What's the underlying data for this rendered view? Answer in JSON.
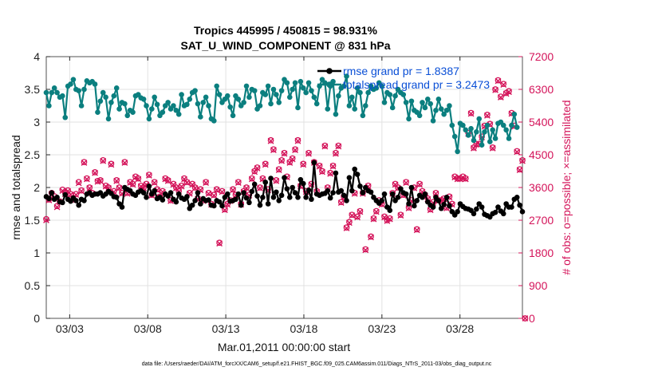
{
  "chart_data": {
    "type": "line",
    "title": "Tropics 445995 / 450815 = 98.931%",
    "subtitle": "SAT_U_WIND_COMPONENT @ 831 hPa",
    "xlabel": "Mar.01,2011 00:00:00 start",
    "ylabel": "rmse and totalspread",
    "ylabel_right": "# of obs: o=possible; ×=assimilated",
    "footnote": "data file: /Users/raeder/DAI/ATM_forcXX/CAM6_setup/f.e21.FHIST_BGC.f09_025.CAM6assim.011/Diags_NTrS_2011-03/obs_diag_output.nc",
    "xlim": [
      1.5,
      32.0
    ],
    "ylim": [
      0,
      4
    ],
    "ylim_right": [
      0,
      7200
    ],
    "x_tick_positions": [
      3,
      8,
      13,
      18,
      23,
      28
    ],
    "x_tick_labels": [
      "03/03",
      "03/08",
      "03/13",
      "03/18",
      "03/23",
      "03/28"
    ],
    "y_ticks": [
      "0",
      "0.5",
      "1",
      "1.5",
      "2",
      "2.5",
      "3",
      "3.5",
      "4"
    ],
    "y_ticks_right": [
      "0",
      "900",
      "1800",
      "2700",
      "3600",
      "4500",
      "5400",
      "6300",
      "7200"
    ],
    "grid": true,
    "legend_position": "top-right",
    "series": [
      {
        "name": "rmse grand pr = 1.8387",
        "color": "#000000",
        "axis": "left",
        "values": [
          1.86,
          1.83,
          1.92,
          1.82,
          1.85,
          1.78,
          1.77,
          1.89,
          1.82,
          1.79,
          1.84,
          1.8,
          1.73,
          1.82,
          1.8,
          1.9,
          1.92,
          1.88,
          1.9,
          1.9,
          1.92,
          1.87,
          1.9,
          1.94,
          1.91,
          1.86,
          1.85,
          1.75,
          1.7,
          2.0,
          1.97,
          1.95,
          1.9,
          1.88,
          1.93,
          1.95,
          1.92,
          1.85,
          2.02,
          1.9,
          1.95,
          1.83,
          1.85,
          1.81,
          1.9,
          1.87,
          1.92,
          1.82,
          1.78,
          1.9,
          1.84,
          1.82,
          1.86,
          1.68,
          1.73,
          1.8,
          1.92,
          1.75,
          1.83,
          1.8,
          1.81,
          1.73,
          1.72,
          1.8,
          1.78,
          1.72,
          1.85,
          1.9,
          1.79,
          1.8,
          1.82,
          1.9,
          1.73,
          1.92,
          1.84,
          1.77,
          1.94,
          2.05,
          1.87,
          1.73,
          1.85,
          2.08,
          1.75,
          2.14,
          1.85,
          1.93,
          1.8,
          1.88,
          2.15,
          1.98,
          1.85,
          2.0,
          1.92,
          1.85,
          2.12,
          2.06,
          1.85,
          1.96,
          1.82,
          2.38,
          1.9,
          1.88,
          1.9,
          1.91,
          1.95,
          1.84,
          1.92,
          2.22,
          1.93,
          1.95,
          1.88,
          1.8,
          2.15,
          1.95,
          2.28,
          2.2,
          2.02,
          1.92,
          2.0,
          1.95,
          1.93,
          1.85,
          1.8,
          1.76,
          1.8,
          1.9,
          1.7,
          1.65,
          1.9,
          1.8,
          1.85,
          1.98,
          1.92,
          1.9,
          1.75,
          2.0,
          1.72,
          1.8,
          1.88,
          1.85,
          1.9,
          1.78,
          1.73,
          1.7,
          1.85,
          1.8,
          1.68,
          1.74,
          1.85,
          1.72,
          1.63,
          1.58,
          1.63,
          1.75,
          1.71,
          1.68,
          1.67,
          1.65,
          1.6,
          1.67,
          1.75,
          1.7,
          1.59,
          1.57,
          1.55,
          1.6,
          1.62,
          1.7,
          1.64,
          1.6,
          1.75,
          1.7,
          1.7,
          1.82,
          1.85,
          1.73,
          1.63
        ]
      },
      {
        "name": "totalspread grand pr = 3.2473",
        "color": "#0b7f7f",
        "axis": "left",
        "values": [
          3.45,
          3.25,
          3.45,
          3.52,
          3.45,
          3.38,
          3.4,
          3.07,
          3.55,
          3.58,
          3.65,
          3.5,
          3.48,
          3.25,
          3.5,
          3.63,
          3.6,
          3.62,
          3.58,
          3.15,
          3.32,
          3.45,
          3.38,
          3.05,
          3.3,
          3.4,
          3.52,
          3.2,
          3.3,
          3.28,
          3.1,
          3.18,
          3.15,
          3.4,
          3.42,
          3.37,
          3.35,
          3.25,
          3.05,
          3.2,
          3.38,
          3.27,
          3.1,
          3.15,
          3.25,
          3.3,
          3.2,
          3.25,
          3.18,
          3.12,
          3.42,
          3.25,
          3.27,
          3.35,
          3.45,
          3.48,
          3.28,
          3.08,
          3.3,
          3.38,
          3.25,
          3.05,
          3.02,
          3.55,
          3.42,
          3.3,
          3.35,
          3.4,
          3.23,
          3.1,
          3.4,
          3.35,
          3.25,
          3.3,
          3.55,
          3.38,
          3.5,
          3.48,
          3.2,
          3.25,
          3.45,
          3.42,
          3.55,
          3.28,
          3.5,
          3.42,
          3.3,
          3.48,
          3.65,
          3.6,
          3.38,
          3.5,
          3.6,
          3.22,
          3.62,
          3.52,
          3.45,
          3.6,
          3.48,
          3.38,
          3.28,
          3.55,
          3.65,
          3.6,
          3.2,
          3.55,
          3.62,
          3.12,
          3.4,
          3.52,
          3.55,
          3.7,
          3.25,
          3.38,
          3.2,
          3.52,
          3.45,
          3.1,
          3.25,
          3.45,
          3.55,
          3.5,
          3.52,
          3.6,
          3.55,
          3.3,
          3.45,
          3.42,
          3.22,
          3.4,
          3.5,
          3.45,
          3.42,
          3.3,
          3.05,
          3.32,
          3.18,
          3.15,
          3.1,
          3.3,
          3.22,
          3.35,
          3.28,
          3.02,
          3.18,
          3.35,
          3.2,
          3.12,
          3.18,
          3.25,
          2.95,
          2.78,
          2.55,
          2.98,
          2.95,
          2.88,
          2.8,
          2.9,
          2.72,
          2.85,
          3.05,
          2.65,
          2.85,
          2.95,
          2.7,
          2.88,
          2.75,
          2.98,
          3.0,
          2.95,
          2.88,
          2.75,
          2.95,
          3.12,
          2.92
        ]
      },
      {
        "name": "obs possible",
        "color": "#d4145a",
        "axis": "right",
        "marker": "o",
        "values": [
          2730,
          3270,
          3450,
          3360,
          3090,
          3220,
          3540,
          3450,
          3520,
          3420,
          3270,
          3420,
          3750,
          3520,
          4300,
          3850,
          3600,
          3450,
          4020,
          3780,
          3800,
          4350,
          3650,
          3600,
          4250,
          3500,
          3800,
          3600,
          3450,
          4300,
          3450,
          3750,
          3700,
          3900,
          3850,
          3650,
          3600,
          3700,
          3950,
          3400,
          3750,
          3550,
          3350,
          3500,
          3850,
          3800,
          3250,
          3700,
          3600,
          3500,
          3650,
          3850,
          3750,
          3450,
          3700,
          3600,
          3300,
          3550,
          3250,
          3750,
          3450,
          3150,
          3400,
          3550,
          2080,
          3500,
          3000,
          3150,
          3250,
          3550,
          3400,
          3750,
          3150,
          3500,
          3600,
          3400,
          3850,
          4050,
          4150,
          3600,
          3850,
          4250,
          3550,
          4900,
          4650,
          3800,
          4100,
          4350,
          4550,
          3900,
          4300,
          4400,
          4650,
          4900,
          3650,
          4250,
          3500,
          4550,
          3700,
          4300,
          3500,
          4200,
          4050,
          4750,
          3600,
          4000,
          4200,
          4550,
          4750,
          3200,
          3350,
          2500,
          2650,
          2850,
          3450,
          2800,
          2950,
          3450,
          1900,
          3650,
          2250,
          2750,
          2950,
          3250,
          3150,
          2800,
          2700,
          2750,
          3450,
          3700,
          3600,
          2850,
          3400,
          3750,
          3050,
          3250,
          3600,
          2450,
          3700,
          3500,
          3400,
          3300,
          3000,
          3200,
          3450,
          3250,
          3250,
          3300,
          3050,
          3350,
          3150,
          3900,
          3850,
          3850,
          3900,
          3850,
          5100,
          5650,
          4700,
          4800,
          4800,
          5000,
          5300,
          5600,
          5350,
          4700,
          6300,
          6550,
          6100,
          6450,
          6200,
          6250,
          5650,
          5300,
          4600,
          4100,
          4350,
          0
        ]
      },
      {
        "name": "obs assimilated",
        "color": "#d4145a",
        "axis": "right",
        "marker": "x",
        "values": [
          2700,
          3250,
          3420,
          3330,
          3060,
          3200,
          3510,
          3420,
          3500,
          3400,
          3250,
          3400,
          3720,
          3500,
          4280,
          3830,
          3580,
          3430,
          4000,
          3760,
          3780,
          4330,
          3630,
          3580,
          4230,
          3480,
          3780,
          3580,
          3430,
          4280,
          3430,
          3730,
          3680,
          3880,
          3830,
          3630,
          3580,
          3680,
          3930,
          3380,
          3730,
          3530,
          3330,
          3480,
          3830,
          3780,
          3230,
          3680,
          3580,
          3480,
          3630,
          3830,
          3730,
          3430,
          3680,
          3580,
          3280,
          3530,
          3230,
          3730,
          3430,
          3130,
          3380,
          3530,
          2060,
          3480,
          2980,
          3130,
          3230,
          3530,
          3380,
          3730,
          3130,
          3480,
          3580,
          3380,
          3830,
          4030,
          4130,
          3580,
          3830,
          4230,
          3530,
          4880,
          4630,
          3780,
          4080,
          4330,
          4530,
          3880,
          4280,
          4380,
          4630,
          4880,
          3630,
          4230,
          3480,
          4530,
          3680,
          4280,
          3480,
          4180,
          4030,
          4730,
          3580,
          3980,
          4180,
          4530,
          4730,
          3180,
          3330,
          2480,
          2630,
          2830,
          3430,
          2780,
          2930,
          3430,
          1880,
          3630,
          2230,
          2730,
          2930,
          3230,
          3130,
          2780,
          2680,
          2730,
          3430,
          3680,
          3580,
          2830,
          3380,
          3730,
          3030,
          3230,
          3580,
          2430,
          3680,
          3480,
          3380,
          3280,
          2980,
          3180,
          3430,
          3230,
          3230,
          3280,
          3030,
          3330,
          3130,
          3880,
          3830,
          3830,
          3880,
          3830,
          5080,
          5630,
          4680,
          4780,
          4780,
          4980,
          5280,
          5580,
          5330,
          4680,
          6280,
          6530,
          6080,
          6430,
          6180,
          6230,
          5630,
          5280,
          4580,
          4080,
          4330,
          0
        ]
      }
    ]
  }
}
